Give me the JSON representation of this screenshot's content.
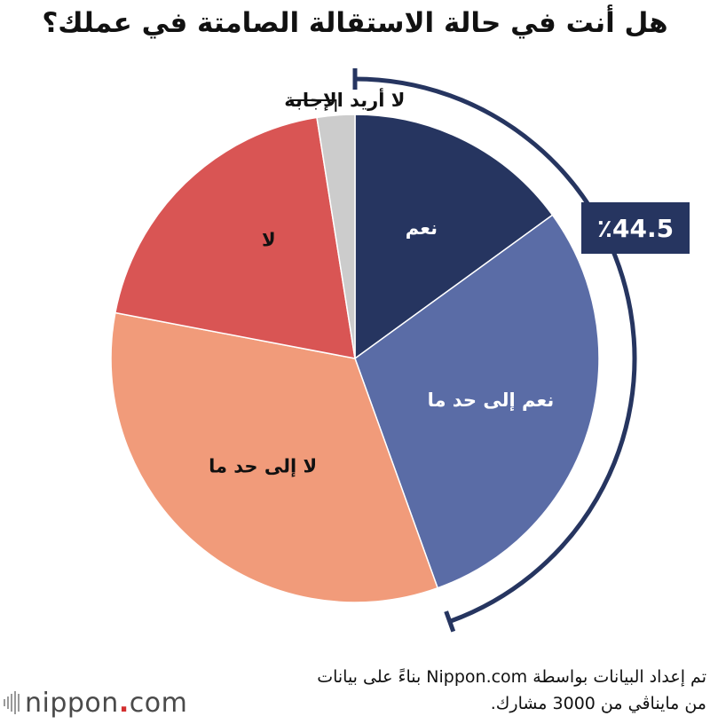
{
  "title": "هل أنت في حالة الاستقالة الصامتة في عملك؟",
  "chart_data": {
    "type": "pie",
    "title": "هل أنت في حالة الاستقالة الصامتة في عملك؟",
    "slices": [
      {
        "label": "نعم",
        "value": 15.0,
        "color": "#263560"
      },
      {
        "label": "نعم إلى حد ما",
        "value": 29.5,
        "color": "#5a6ca6"
      },
      {
        "label": "لا إلى حد ما",
        "value": 33.5,
        "color": "#f19b7a"
      },
      {
        "label": "لا",
        "value": 19.5,
        "color": "#d95554"
      },
      {
        "label": "لا أريد الإجابة",
        "value": 2.5,
        "color": "#cccccc"
      }
    ],
    "bracket": {
      "value": "44.5",
      "unit": "٪",
      "covers": [
        "نعم",
        "نعم إلى حد ما"
      ],
      "color": "#263560"
    }
  },
  "source": {
    "line1": "تم إعداد البيانات بواسطة Nippon.com بناءً على بيانات",
    "line2": "من مايناڤي من 3000 مشارك."
  },
  "logo": {
    "name": "nippon",
    "dot": ".",
    "suffix": "com"
  }
}
